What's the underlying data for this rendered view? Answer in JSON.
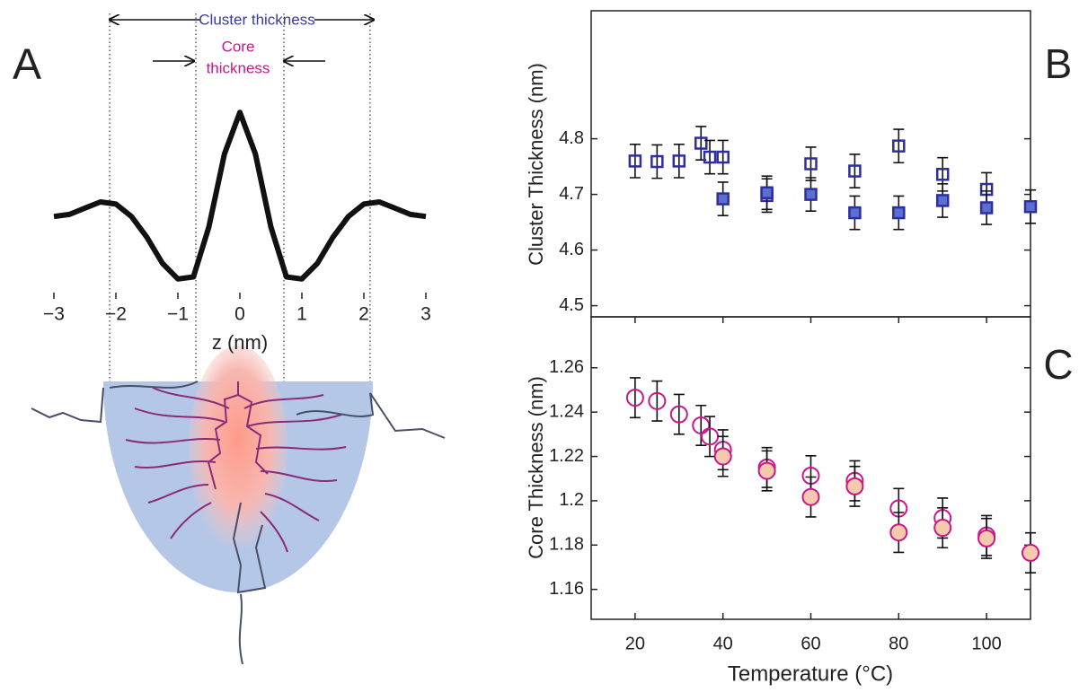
{
  "chart_data": [
    {
      "type": "line",
      "panel_label": "A",
      "x_label": "z (nm)",
      "cluster_label": "Cluster thickness",
      "core_label": [
        "Core",
        "thickness"
      ],
      "x": [
        -3,
        -2.75,
        -2.5,
        -2.25,
        -2,
        -1.75,
        -1.5,
        -1.25,
        -1,
        -0.75,
        -0.5,
        -0.25,
        0,
        0.25,
        0.5,
        0.75,
        1,
        1.25,
        1.5,
        1.75,
        2,
        2.25,
        2.5,
        2.75,
        3
      ],
      "values": [
        0,
        0.02,
        0.08,
        0.14,
        0.12,
        0.0,
        -0.2,
        -0.45,
        -0.6,
        -0.58,
        -0.1,
        0.6,
        1.0,
        0.6,
        -0.1,
        -0.58,
        -0.6,
        -0.45,
        -0.2,
        0.0,
        0.12,
        0.14,
        0.08,
        0.02,
        0
      ],
      "color": "#111111",
      "guides": [
        -2.1,
        -0.71,
        0.71,
        2.1
      ],
      "xlim": [
        -3,
        3
      ],
      "ylim": [
        -0.8,
        1.2
      ],
      "xticks": [
        {
          "value": -3,
          "label": "−3"
        },
        {
          "value": -2,
          "label": "−2"
        },
        {
          "value": -1,
          "label": "−1"
        },
        0,
        1,
        2,
        3
      ]
    },
    {
      "type": "scatter",
      "panel_label": "B",
      "y_label": "Cluster Thickness (nm)",
      "xlim": [
        10,
        110
      ],
      "ylim": [
        4.48,
        5.03
      ],
      "yticks": [
        4.5,
        4.6,
        4.7,
        4.8
      ],
      "series": [
        {
          "marker": "square",
          "filled": false,
          "color": "#2e2e9e",
          "x": [
            20,
            25,
            30,
            35,
            37,
            40,
            50,
            60,
            70,
            80,
            90,
            100
          ],
          "values": [
            4.76,
            4.759,
            4.76,
            4.792,
            4.767,
            4.767,
            4.698,
            4.755,
            4.742,
            4.787,
            4.736,
            4.709
          ],
          "errors": [
            0.03,
            0.03,
            0.03,
            0.03,
            0.03,
            0.03,
            0.03,
            0.03,
            0.03,
            0.03,
            0.03,
            0.03
          ]
        },
        {
          "marker": "square",
          "filled": true,
          "color": "#2e2e9e",
          "fill": "#5a6fd0",
          "x": [
            40,
            50,
            60,
            70,
            80,
            90,
            100,
            110
          ],
          "values": [
            4.692,
            4.703,
            4.7,
            4.667,
            4.667,
            4.689,
            4.676,
            4.678
          ],
          "errors": [
            0.03,
            0.03,
            0.03,
            0.03,
            0.03,
            0.03,
            0.03,
            0.03
          ]
        }
      ]
    },
    {
      "type": "scatter",
      "panel_label": "C",
      "y_label": "Core Thickness (nm)",
      "x_label": "Temperature  (°C)",
      "xlim": [
        10,
        110
      ],
      "ylim": [
        1.1465,
        1.283
      ],
      "xticks": [
        20,
        40,
        60,
        80,
        100
      ],
      "yticks": [
        1.16,
        1.18,
        1.2,
        1.22,
        1.24,
        1.26
      ],
      "series": [
        {
          "marker": "circle",
          "filled": false,
          "color": "#c8188a",
          "x": [
            20,
            25,
            30,
            35,
            37,
            40,
            50,
            60,
            70,
            80,
            90,
            100
          ],
          "values": [
            1.2465,
            1.245,
            1.239,
            1.234,
            1.229,
            1.223,
            1.215,
            1.2113,
            1.209,
            1.1965,
            1.1922,
            1.1843
          ],
          "errors": [
            0.009,
            0.009,
            0.009,
            0.009,
            0.009,
            0.009,
            0.009,
            0.009,
            0.009,
            0.009,
            0.009,
            0.009
          ]
        },
        {
          "marker": "circle",
          "filled": true,
          "color": "#c8188a",
          "fill": "#f5c9ad",
          "x": [
            40,
            50,
            60,
            70,
            80,
            90,
            100,
            110
          ],
          "values": [
            1.22,
            1.2135,
            1.2017,
            1.2065,
            1.1857,
            1.1878,
            1.183,
            1.1765
          ],
          "errors": [
            0.009,
            0.009,
            0.009,
            0.009,
            0.009,
            0.009,
            0.009,
            0.009
          ]
        }
      ]
    }
  ]
}
